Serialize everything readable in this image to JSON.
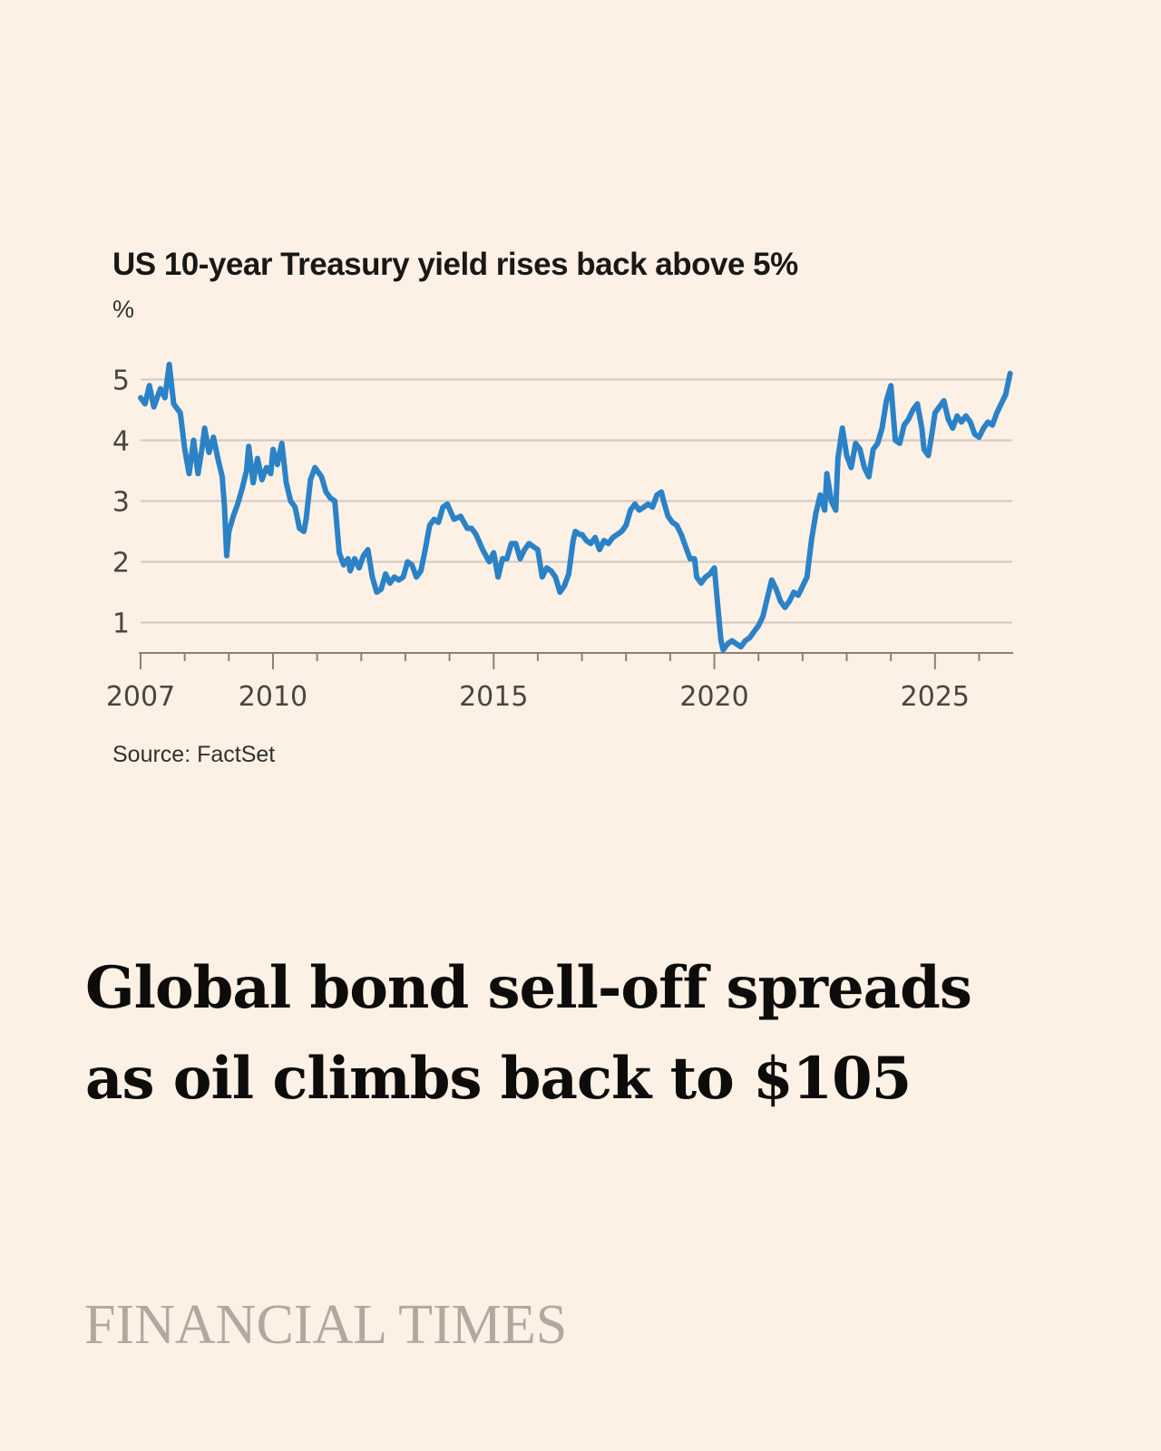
{
  "chart_data": {
    "type": "line",
    "title": "US 10-year Treasury yield rises back above 5%",
    "ylabel": "%",
    "xlabel": "",
    "source": "Source: FactSet",
    "xlim": [
      2007.0,
      2026.75
    ],
    "ylim": [
      0.5,
      5.5
    ],
    "yticks": [
      1,
      2,
      3,
      4,
      5
    ],
    "ytick_labels": [
      "1",
      "2",
      "3",
      "4",
      "5"
    ],
    "xticks_major": [
      2007,
      2010,
      2015,
      2020,
      2025
    ],
    "xtick_labels": [
      "2007",
      "2010",
      "2015",
      "2020",
      "2025"
    ],
    "xticks_minor": [
      2008,
      2009,
      2011,
      2012,
      2013,
      2014,
      2016,
      2017,
      2018,
      2019,
      2021,
      2022,
      2023,
      2024,
      2026
    ],
    "grid": "horizontal",
    "series": [
      {
        "color": "#2B82C6",
        "x": [
          2007.0,
          2007.1,
          2007.2,
          2007.3,
          2007.45,
          2007.55,
          2007.65,
          2007.75,
          2007.9,
          2008.0,
          2008.1,
          2008.2,
          2008.3,
          2008.4,
          2008.45,
          2008.55,
          2008.65,
          2008.75,
          2008.85,
          2008.9,
          2008.95,
          2009.0,
          2009.1,
          2009.2,
          2009.3,
          2009.4,
          2009.45,
          2009.55,
          2009.65,
          2009.75,
          2009.85,
          2009.95,
          2010.0,
          2010.1,
          2010.2,
          2010.3,
          2010.4,
          2010.5,
          2010.6,
          2010.7,
          2010.75,
          2010.85,
          2010.95,
          2011.0,
          2011.1,
          2011.2,
          2011.3,
          2011.4,
          2011.5,
          2011.6,
          2011.7,
          2011.75,
          2011.85,
          2011.95,
          2012.05,
          2012.15,
          2012.25,
          2012.35,
          2012.45,
          2012.55,
          2012.65,
          2012.75,
          2012.85,
          2012.95,
          2013.05,
          2013.15,
          2013.25,
          2013.35,
          2013.45,
          2013.55,
          2013.65,
          2013.75,
          2013.85,
          2013.95,
          2014.1,
          2014.25,
          2014.4,
          2014.5,
          2014.6,
          2014.75,
          2014.9,
          2015.0,
          2015.1,
          2015.2,
          2015.3,
          2015.4,
          2015.5,
          2015.6,
          2015.7,
          2015.8,
          2015.9,
          2016.0,
          2016.1,
          2016.2,
          2016.3,
          2016.4,
          2016.5,
          2016.6,
          2016.7,
          2016.8,
          2016.85,
          2016.95,
          2017.0,
          2017.1,
          2017.2,
          2017.3,
          2017.4,
          2017.5,
          2017.6,
          2017.7,
          2017.8,
          2017.9,
          2018.0,
          2018.1,
          2018.2,
          2018.3,
          2018.4,
          2018.5,
          2018.6,
          2018.7,
          2018.8,
          2018.85,
          2018.95,
          2019.05,
          2019.15,
          2019.25,
          2019.35,
          2019.45,
          2019.55,
          2019.6,
          2019.7,
          2019.8,
          2019.9,
          2020.0,
          2020.05,
          2020.1,
          2020.15,
          2020.2,
          2020.3,
          2020.4,
          2020.5,
          2020.6,
          2020.7,
          2020.8,
          2020.9,
          2021.0,
          2021.1,
          2021.2,
          2021.3,
          2021.4,
          2021.5,
          2021.6,
          2021.7,
          2021.8,
          2021.9,
          2022.0,
          2022.1,
          2022.2,
          2022.3,
          2022.4,
          2022.5,
          2022.55,
          2022.65,
          2022.75,
          2022.8,
          2022.9,
          2023.0,
          2023.1,
          2023.2,
          2023.3,
          2023.4,
          2023.5,
          2023.6,
          2023.7,
          2023.8,
          2023.9,
          2024.0,
          2024.1,
          2024.2,
          2024.3,
          2024.4,
          2024.5,
          2024.6,
          2024.7,
          2024.75,
          2024.85,
          2024.95,
          2025.0,
          2025.1,
          2025.2,
          2025.3,
          2025.4,
          2025.5,
          2025.6,
          2025.7,
          2025.8,
          2025.9,
          2026.0,
          2026.1,
          2026.2,
          2026.3,
          2026.4,
          2026.5,
          2026.6,
          2026.7
        ],
        "y": [
          4.7,
          4.6,
          4.9,
          4.55,
          4.85,
          4.7,
          5.25,
          4.6,
          4.45,
          3.85,
          3.45,
          4.0,
          3.45,
          3.9,
          4.2,
          3.8,
          4.05,
          3.7,
          3.4,
          2.9,
          2.1,
          2.5,
          2.75,
          2.95,
          3.2,
          3.5,
          3.9,
          3.3,
          3.7,
          3.35,
          3.55,
          3.45,
          3.85,
          3.6,
          3.95,
          3.3,
          3.0,
          2.9,
          2.55,
          2.5,
          2.7,
          3.35,
          3.55,
          3.5,
          3.4,
          3.15,
          3.05,
          3.0,
          2.15,
          1.95,
          2.05,
          1.85,
          2.05,
          1.9,
          2.1,
          2.2,
          1.75,
          1.5,
          1.55,
          1.8,
          1.65,
          1.75,
          1.7,
          1.75,
          2.0,
          1.95,
          1.75,
          1.85,
          2.2,
          2.6,
          2.7,
          2.65,
          2.9,
          2.95,
          2.7,
          2.75,
          2.55,
          2.55,
          2.45,
          2.2,
          2.0,
          2.15,
          1.75,
          2.05,
          2.05,
          2.3,
          2.3,
          2.05,
          2.2,
          2.3,
          2.25,
          2.2,
          1.75,
          1.9,
          1.85,
          1.75,
          1.5,
          1.6,
          1.8,
          2.35,
          2.5,
          2.45,
          2.45,
          2.35,
          2.3,
          2.4,
          2.2,
          2.35,
          2.3,
          2.4,
          2.45,
          2.5,
          2.6,
          2.85,
          2.95,
          2.85,
          2.9,
          2.95,
          2.9,
          3.1,
          3.15,
          3.0,
          2.75,
          2.65,
          2.6,
          2.45,
          2.25,
          2.05,
          2.05,
          1.75,
          1.65,
          1.75,
          1.8,
          1.9,
          1.5,
          1.1,
          0.7,
          0.55,
          0.65,
          0.7,
          0.65,
          0.6,
          0.7,
          0.75,
          0.85,
          0.95,
          1.1,
          1.4,
          1.7,
          1.55,
          1.35,
          1.25,
          1.35,
          1.5,
          1.45,
          1.6,
          1.75,
          2.35,
          2.8,
          3.1,
          2.85,
          3.45,
          3.0,
          2.85,
          3.7,
          4.2,
          3.75,
          3.55,
          3.95,
          3.85,
          3.55,
          3.4,
          3.85,
          3.95,
          4.2,
          4.65,
          4.9,
          4.0,
          3.95,
          4.25,
          4.35,
          4.5,
          4.6,
          4.2,
          3.85,
          3.75,
          4.2,
          4.45,
          4.55,
          4.65,
          4.35,
          4.2,
          4.4,
          4.3,
          4.4,
          4.3,
          4.1,
          4.05,
          4.2,
          4.3,
          4.25,
          4.45,
          4.6,
          4.75,
          5.1
        ]
      }
    ]
  },
  "article": {
    "headline_line1": "Global bond sell-off spreads",
    "headline_line2": "as oil climbs back to $105"
  },
  "brand": {
    "masthead": "FINANCIAL TIMES",
    "masthead_color": "#B2A89E",
    "background_color": "#FDF1E6"
  }
}
